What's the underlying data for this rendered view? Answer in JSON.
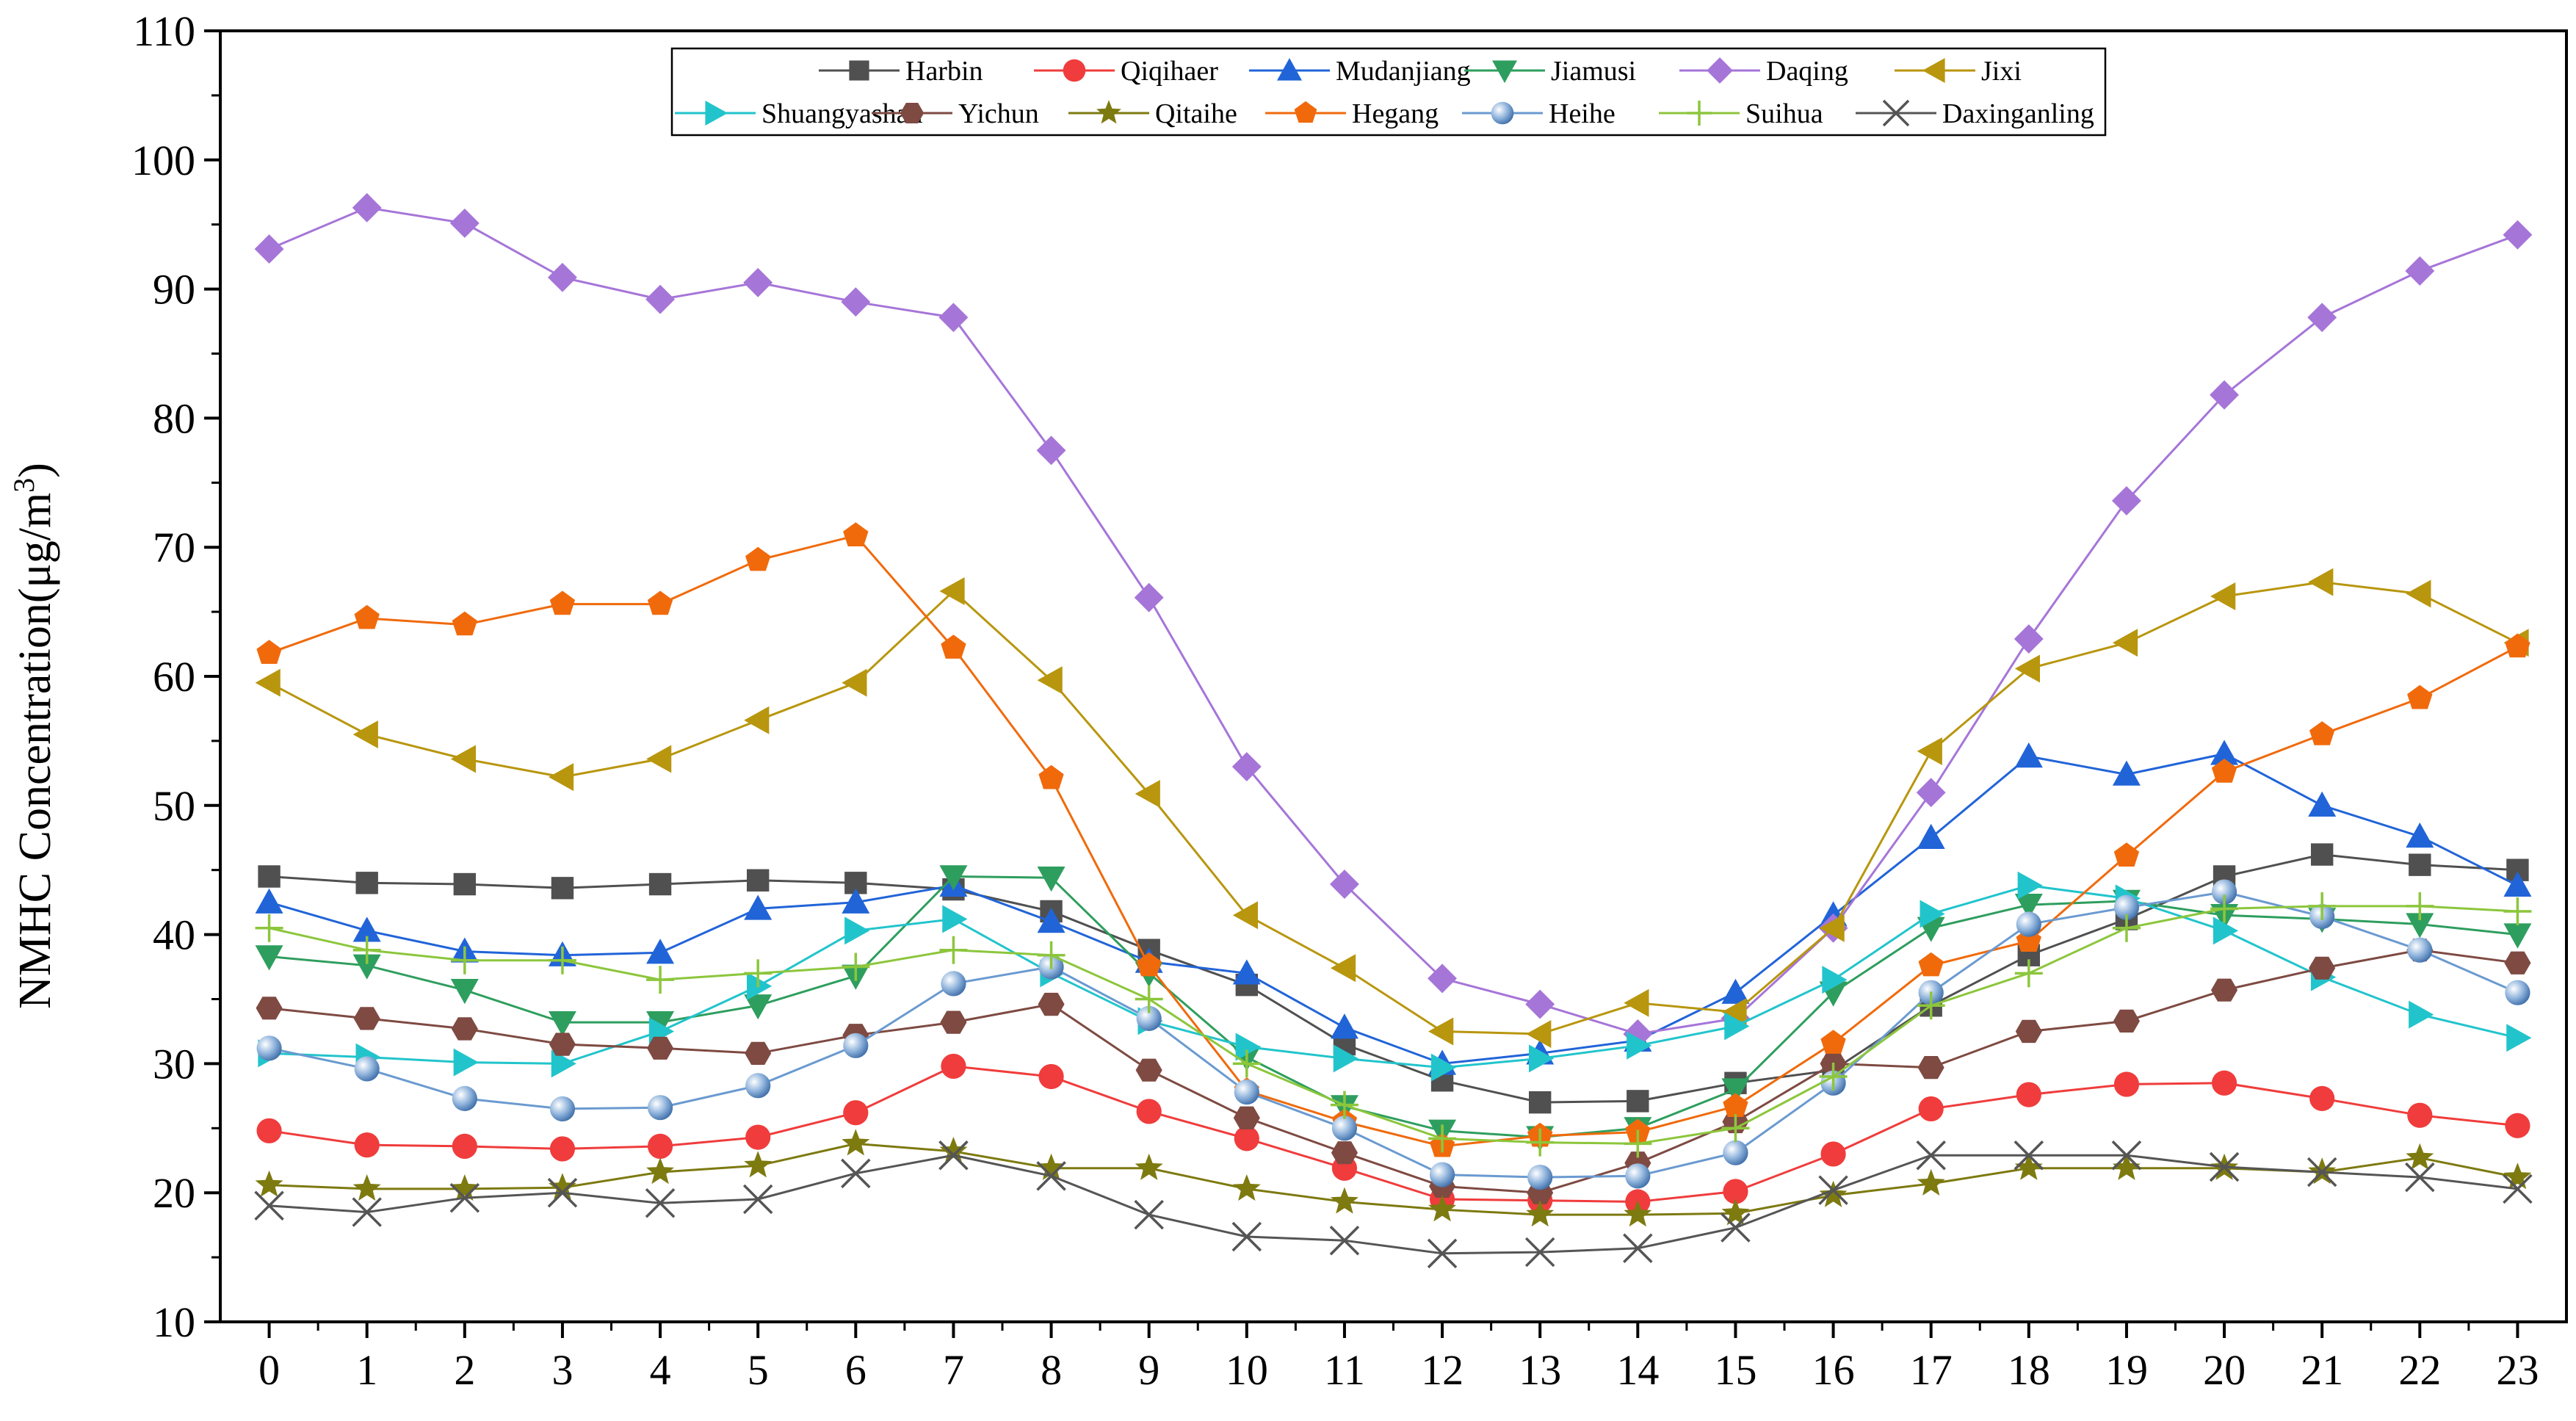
{
  "chart_data": {
    "type": "line",
    "title": "",
    "xlabel": "",
    "ylabel": "NMHC Concentration(μg/m3)",
    "ylabel_main": "NMHC Concentration(μg/m",
    "ylabel_sup": "3",
    "ylabel_close": ")",
    "xlim": [
      -0.5,
      23.5
    ],
    "ylim": [
      10,
      110
    ],
    "yticks": [
      10,
      20,
      30,
      40,
      50,
      60,
      70,
      80,
      90,
      100,
      110
    ],
    "categories": [
      0,
      1,
      2,
      3,
      4,
      5,
      6,
      7,
      8,
      9,
      10,
      11,
      12,
      13,
      14,
      15,
      16,
      17,
      18,
      19,
      20,
      21,
      22,
      23
    ],
    "legend_position": "top-center",
    "series": [
      {
        "name": "Harbin",
        "color": "#505050",
        "marker": "square",
        "values": [
          44.5,
          44.0,
          43.9,
          43.6,
          43.9,
          44.2,
          44.0,
          43.5,
          41.8,
          38.8,
          36.1,
          31.5,
          28.7,
          27.0,
          27.1,
          28.5,
          29.5,
          34.5,
          38.4,
          41.2,
          44.5,
          46.2,
          45.4,
          45.0
        ]
      },
      {
        "name": "Qiqihaer",
        "color": "#F03C3C",
        "marker": "circle",
        "values": [
          24.8,
          23.7,
          23.6,
          23.4,
          23.6,
          24.3,
          26.2,
          29.8,
          29.0,
          26.3,
          24.2,
          21.9,
          19.5,
          19.4,
          19.3,
          20.1,
          23.0,
          26.5,
          27.6,
          28.4,
          28.5,
          27.3,
          26.0,
          25.2
        ]
      },
      {
        "name": "Mudanjiang",
        "color": "#2164D8",
        "marker": "triangle-up",
        "values": [
          42.5,
          40.3,
          38.7,
          38.4,
          38.6,
          42.0,
          42.5,
          43.8,
          41.0,
          37.9,
          37.0,
          32.8,
          30.0,
          30.8,
          31.8,
          35.5,
          41.5,
          47.5,
          53.8,
          52.4,
          54.0,
          50.0,
          47.6,
          43.8
        ]
      },
      {
        "name": "Jiamusi",
        "color": "#2E9E5E",
        "marker": "triangle-down",
        "values": [
          38.3,
          37.6,
          35.7,
          33.2,
          33.2,
          34.5,
          36.8,
          44.5,
          44.4,
          37.0,
          30.5,
          26.7,
          24.8,
          24.3,
          25.0,
          28.0,
          35.5,
          40.5,
          42.3,
          42.6,
          41.5,
          41.2,
          40.8,
          40.0
        ]
      },
      {
        "name": "Daqing",
        "color": "#A675D8",
        "marker": "diamond",
        "values": [
          93.1,
          96.3,
          95.1,
          90.9,
          89.2,
          90.5,
          89.0,
          87.8,
          77.5,
          66.1,
          53.0,
          43.9,
          36.6,
          34.6,
          32.3,
          33.5,
          40.5,
          51.0,
          62.9,
          73.6,
          81.8,
          87.8,
          91.4,
          94.2
        ]
      },
      {
        "name": "Jixi",
        "color": "#B8960E",
        "marker": "triangle-left",
        "values": [
          59.5,
          55.5,
          53.6,
          52.2,
          53.6,
          56.6,
          59.5,
          66.6,
          59.7,
          50.9,
          41.5,
          37.4,
          32.5,
          32.3,
          34.7,
          34.0,
          40.5,
          54.2,
          60.6,
          62.6,
          66.2,
          67.3,
          66.4,
          62.6
        ]
      },
      {
        "name": "Shuangyashan",
        "color": "#22C4CC",
        "marker": "triangle-right",
        "values": [
          30.8,
          30.5,
          30.1,
          30.0,
          32.5,
          36.0,
          40.3,
          41.2,
          37.0,
          33.3,
          31.3,
          30.4,
          29.7,
          30.4,
          31.4,
          32.9,
          36.5,
          41.6,
          43.8,
          42.8,
          40.3,
          36.7,
          33.8,
          32.0
        ]
      },
      {
        "name": "Yichun",
        "color": "#7E4A42",
        "marker": "hexagon",
        "values": [
          34.3,
          33.5,
          32.7,
          31.5,
          31.2,
          30.8,
          32.2,
          33.2,
          34.6,
          29.5,
          25.8,
          23.1,
          20.5,
          20.0,
          22.3,
          25.5,
          30.0,
          29.7,
          32.5,
          33.3,
          35.7,
          37.4,
          38.8,
          37.8
        ]
      },
      {
        "name": "Qitaihe",
        "color": "#7D7A10",
        "marker": "star",
        "values": [
          20.6,
          20.3,
          20.3,
          20.4,
          21.6,
          22.1,
          23.8,
          23.2,
          21.9,
          21.9,
          20.3,
          19.3,
          18.7,
          18.3,
          18.3,
          18.4,
          19.8,
          20.7,
          21.9,
          21.9,
          21.9,
          21.6,
          22.7,
          21.2
        ]
      },
      {
        "name": "Hegang",
        "color": "#F06A0C",
        "marker": "pentagon",
        "values": [
          61.8,
          64.5,
          64.0,
          65.6,
          65.6,
          69.0,
          70.9,
          62.2,
          52.1,
          37.6,
          27.9,
          25.5,
          23.6,
          24.4,
          24.7,
          26.7,
          31.6,
          37.6,
          39.5,
          46.1,
          52.6,
          55.5,
          58.3,
          62.3
        ]
      },
      {
        "name": "Heihe",
        "color": "#6A9AD0",
        "marker": "sphere",
        "values": [
          31.2,
          29.6,
          27.3,
          26.5,
          26.6,
          28.3,
          31.4,
          36.2,
          37.5,
          33.5,
          27.8,
          25.0,
          21.4,
          21.2,
          21.3,
          23.1,
          28.5,
          35.5,
          40.8,
          42.1,
          43.3,
          41.4,
          38.8,
          35.5
        ]
      },
      {
        "name": "Suihua",
        "color": "#8CC63C",
        "marker": "plus",
        "values": [
          40.5,
          38.8,
          38.0,
          38.0,
          36.5,
          37.0,
          37.5,
          38.8,
          38.4,
          35.0,
          30.0,
          26.8,
          24.2,
          23.9,
          23.8,
          25.0,
          29.0,
          34.5,
          37.0,
          40.5,
          42.0,
          42.2,
          42.2,
          41.8
        ]
      },
      {
        "name": "Daxinganling",
        "color": "#555555",
        "marker": "x",
        "values": [
          19.0,
          18.5,
          19.6,
          20.0,
          19.2,
          19.5,
          21.5,
          22.9,
          21.3,
          18.3,
          16.6,
          16.3,
          15.3,
          15.4,
          15.7,
          17.3,
          20.2,
          22.9,
          22.9,
          22.9,
          22.0,
          21.6,
          21.2,
          20.3
        ]
      }
    ]
  }
}
